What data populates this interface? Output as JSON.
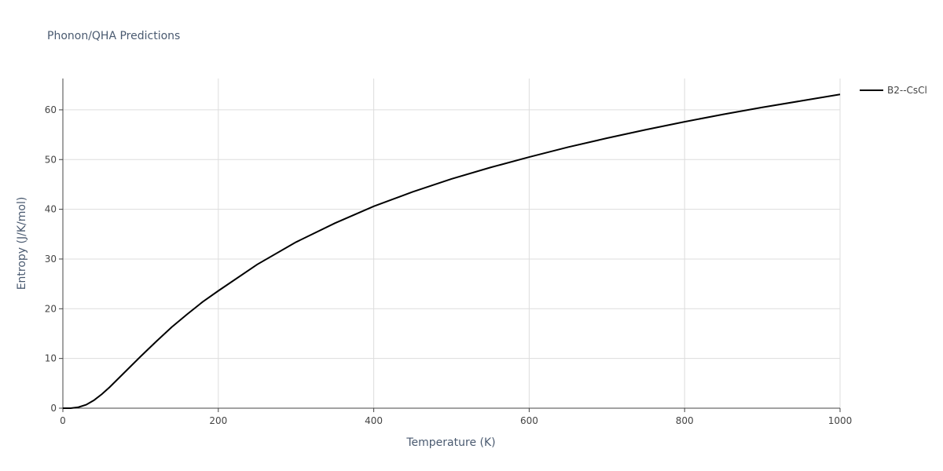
{
  "chart_data": {
    "type": "line",
    "title": "Phonon/QHA Predictions",
    "x_label": "Temperature (K)",
    "y_label": "Entropy (J/K/mol)",
    "x": [
      0,
      10,
      20,
      30,
      40,
      50,
      60,
      80,
      100,
      120,
      140,
      160,
      180,
      200,
      250,
      300,
      350,
      400,
      450,
      500,
      550,
      600,
      650,
      700,
      750,
      800,
      850,
      900,
      950,
      1000
    ],
    "series": [
      {
        "name": "B2--CsCl",
        "color": "#000000",
        "values": [
          0,
          0,
          0.2,
          0.7,
          1.6,
          2.8,
          4.2,
          7.3,
          10.4,
          13.4,
          16.3,
          18.9,
          21.4,
          23.6,
          28.9,
          33.4,
          37.2,
          40.6,
          43.5,
          46.1,
          48.4,
          50.5,
          52.5,
          54.3,
          56.0,
          57.6,
          59.1,
          60.5,
          61.8,
          63.1
        ]
      }
    ],
    "xlim": [
      0,
      1000
    ],
    "xticks": [
      0,
      200,
      400,
      600,
      800,
      1000
    ],
    "ylim": [
      0,
      66.3
    ],
    "yticks": [
      0,
      10,
      20,
      30,
      40,
      50,
      60
    ],
    "grid": true,
    "legend": "right"
  }
}
